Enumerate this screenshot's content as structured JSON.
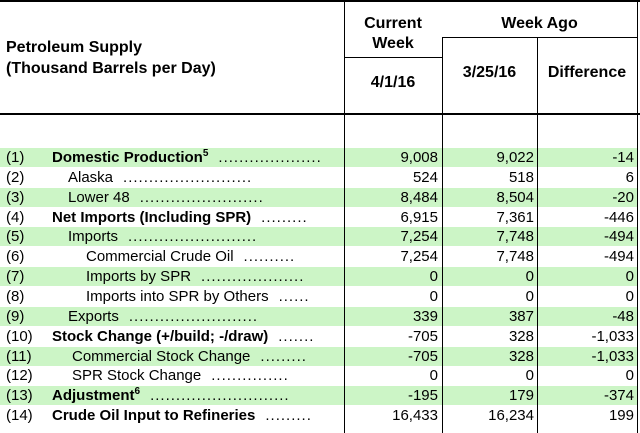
{
  "header": {
    "title_line1": "Petroleum Supply",
    "title_line2": "(Thousand Barrels per Day)",
    "current_week_line1": "Current",
    "current_week_line2": "Week",
    "week_ago": "Week Ago",
    "current_date": "4/1/16",
    "prior_date": "3/25/16",
    "difference": "Difference"
  },
  "rows": [
    {
      "num": "(1)",
      "label": "Domestic Production",
      "sup": "5",
      "dots": "....................",
      "current": "9,008",
      "prior": "9,022",
      "diff": "-14"
    },
    {
      "num": "(2)",
      "label": "Alaska",
      "sup": "",
      "dots": ".........................",
      "current": "524",
      "prior": "518",
      "diff": "6"
    },
    {
      "num": "(3)",
      "label": "Lower 48",
      "sup": "",
      "dots": "........................",
      "current": "8,484",
      "prior": "8,504",
      "diff": "-20"
    },
    {
      "num": "(4)",
      "label": "Net Imports (Including SPR)",
      "sup": "",
      "dots": ".........",
      "current": "6,915",
      "prior": "7,361",
      "diff": "-446"
    },
    {
      "num": "(5)",
      "label": "Imports",
      "sup": "",
      "dots": ".........................",
      "current": "7,254",
      "prior": "7,748",
      "diff": "-494"
    },
    {
      "num": "(6)",
      "label": "Commercial Crude Oil",
      "sup": "",
      "dots": "..........",
      "current": "7,254",
      "prior": "7,748",
      "diff": "-494"
    },
    {
      "num": "(7)",
      "label": "Imports by SPR",
      "sup": "",
      "dots": "....................",
      "current": "0",
      "prior": "0",
      "diff": "0"
    },
    {
      "num": "(8)",
      "label": "Imports into SPR by Others",
      "sup": "",
      "dots": "......",
      "current": "0",
      "prior": "0",
      "diff": "0"
    },
    {
      "num": "(9)",
      "label": "Exports",
      "sup": "",
      "dots": ".........................",
      "current": "339",
      "prior": "387",
      "diff": "-48"
    },
    {
      "num": "(10)",
      "label": "Stock Change (+/build; -/draw)",
      "sup": "",
      "dots": ".......",
      "current": "-705",
      "prior": "328",
      "diff": "-1,033"
    },
    {
      "num": "(11)",
      "label": "Commercial Stock Change",
      "sup": "",
      "dots": ".........",
      "current": "-705",
      "prior": "328",
      "diff": "-1,033"
    },
    {
      "num": "(12)",
      "label": "SPR Stock Change",
      "sup": "",
      "dots": "...............",
      "current": "0",
      "prior": "0",
      "diff": "0"
    },
    {
      "num": "(13)",
      "label": "Adjustment",
      "sup": "6",
      "dots": "...........................",
      "current": "-195",
      "prior": "179",
      "diff": "-374"
    },
    {
      "num": "(14)",
      "label": "Crude Oil Input to Refineries",
      "sup": "",
      "dots": ".........",
      "current": "16,433",
      "prior": "16,234",
      "diff": "199"
    }
  ]
}
